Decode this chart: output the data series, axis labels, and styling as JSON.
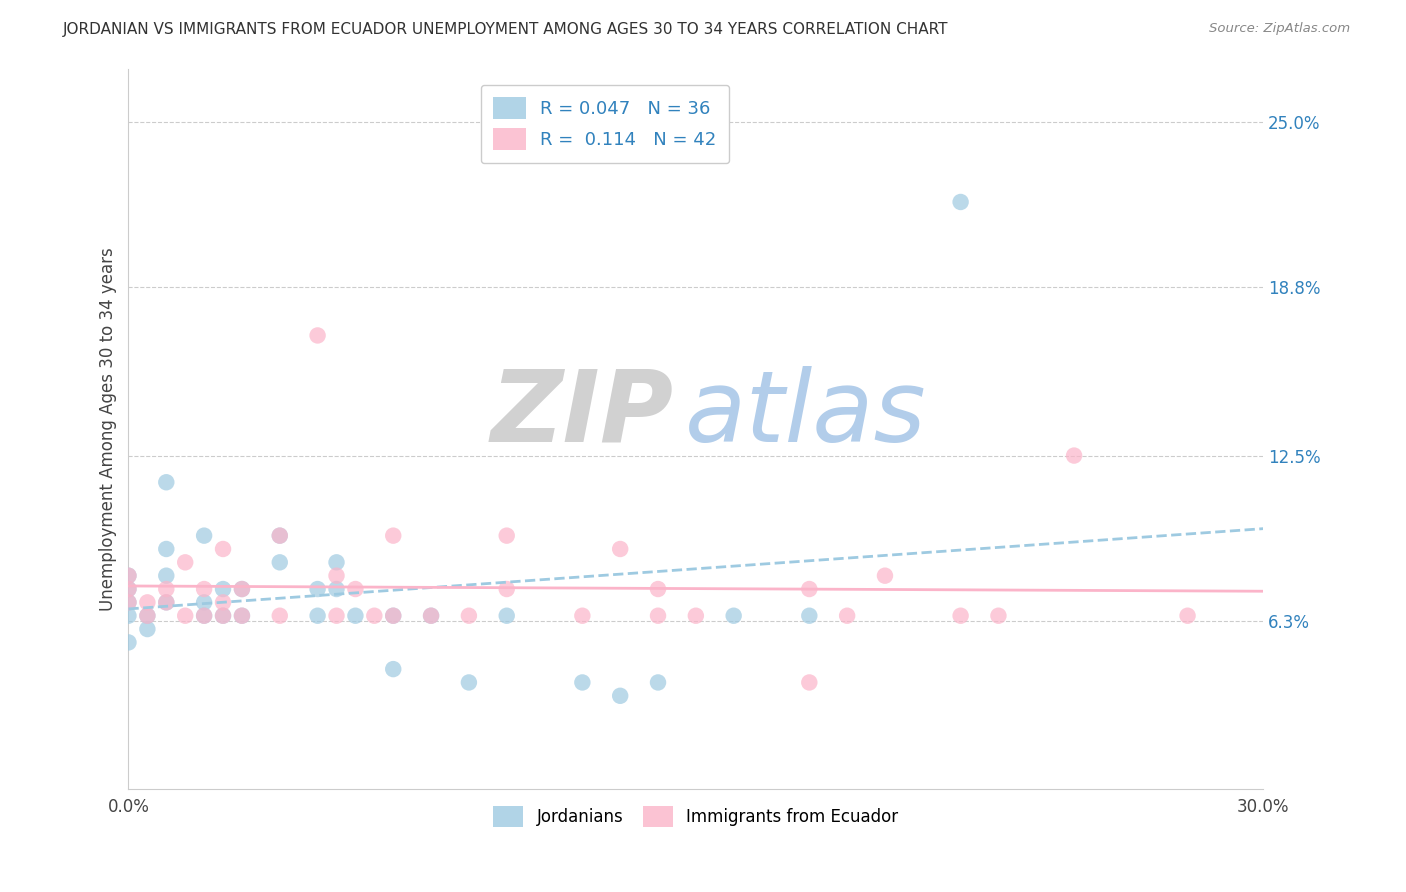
{
  "title": "JORDANIAN VS IMMIGRANTS FROM ECUADOR UNEMPLOYMENT AMONG AGES 30 TO 34 YEARS CORRELATION CHART",
  "source": "Source: ZipAtlas.com",
  "ylabel": "Unemployment Among Ages 30 to 34 years",
  "xlim": [
    0.0,
    0.3
  ],
  "ylim": [
    0.0,
    0.27
  ],
  "xticklabels": [
    "0.0%",
    "30.0%"
  ],
  "right_yticks": [
    0.063,
    0.125,
    0.188,
    0.25
  ],
  "right_yticklabels": [
    "6.3%",
    "12.5%",
    "18.8%",
    "25.0%"
  ],
  "color_blue": "#9ecae1",
  "color_pink": "#fbb4c9",
  "color_blue_line": "#9ecae1",
  "color_pink_line": "#fbb4c9",
  "color_label_blue": "#3182bd",
  "watermark_zip_color": "#cccccc",
  "watermark_atlas_color": "#aac8e8",
  "blue_x": [
    0.0,
    0.0,
    0.0,
    0.0,
    0.0,
    0.005,
    0.005,
    0.01,
    0.01,
    0.01,
    0.01,
    0.02,
    0.02,
    0.02,
    0.025,
    0.025,
    0.03,
    0.03,
    0.04,
    0.04,
    0.05,
    0.05,
    0.055,
    0.055,
    0.06,
    0.07,
    0.07,
    0.08,
    0.09,
    0.1,
    0.12,
    0.13,
    0.14,
    0.16,
    0.18,
    0.22
  ],
  "blue_y": [
    0.055,
    0.065,
    0.07,
    0.075,
    0.08,
    0.06,
    0.065,
    0.07,
    0.08,
    0.09,
    0.115,
    0.065,
    0.07,
    0.095,
    0.065,
    0.075,
    0.065,
    0.075,
    0.085,
    0.095,
    0.065,
    0.075,
    0.075,
    0.085,
    0.065,
    0.065,
    0.045,
    0.065,
    0.04,
    0.065,
    0.04,
    0.035,
    0.04,
    0.065,
    0.065,
    0.22
  ],
  "pink_x": [
    0.0,
    0.0,
    0.0,
    0.005,
    0.005,
    0.01,
    0.01,
    0.015,
    0.015,
    0.02,
    0.02,
    0.025,
    0.025,
    0.025,
    0.03,
    0.03,
    0.04,
    0.04,
    0.05,
    0.055,
    0.055,
    0.06,
    0.065,
    0.07,
    0.07,
    0.08,
    0.09,
    0.1,
    0.1,
    0.12,
    0.13,
    0.14,
    0.14,
    0.15,
    0.18,
    0.18,
    0.19,
    0.2,
    0.22,
    0.23,
    0.25,
    0.28
  ],
  "pink_y": [
    0.07,
    0.075,
    0.08,
    0.065,
    0.07,
    0.07,
    0.075,
    0.065,
    0.085,
    0.065,
    0.075,
    0.065,
    0.07,
    0.09,
    0.065,
    0.075,
    0.065,
    0.095,
    0.17,
    0.065,
    0.08,
    0.075,
    0.065,
    0.065,
    0.095,
    0.065,
    0.065,
    0.075,
    0.095,
    0.065,
    0.09,
    0.065,
    0.075,
    0.065,
    0.04,
    0.075,
    0.065,
    0.08,
    0.065,
    0.065,
    0.125,
    0.065
  ]
}
